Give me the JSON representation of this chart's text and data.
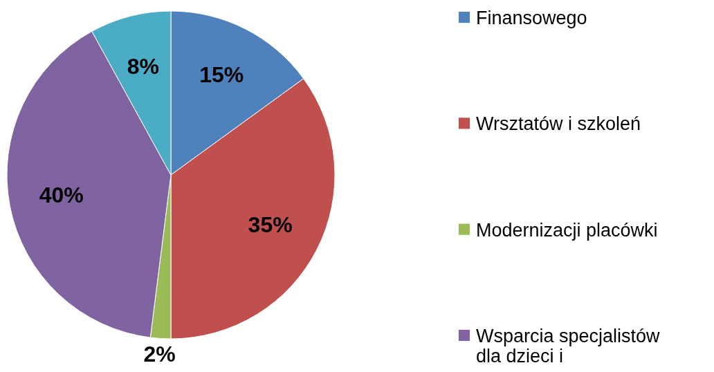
{
  "chart_data": {
    "type": "pie",
    "categories": [
      "Finansowego",
      "Wrsztatów i szkoleń",
      "Modernizacji placówki",
      "Wsparcia specjalistów\ndla dzieci i",
      null
    ],
    "values": [
      15,
      35,
      2,
      40,
      8
    ],
    "value_labels": [
      "15%",
      "35%",
      "2%",
      "40%",
      "8%"
    ],
    "colors": [
      "#4f81bd",
      "#c0504d",
      "#9bbb59",
      "#8064a2",
      "#4bacc6"
    ],
    "legend": "right"
  }
}
